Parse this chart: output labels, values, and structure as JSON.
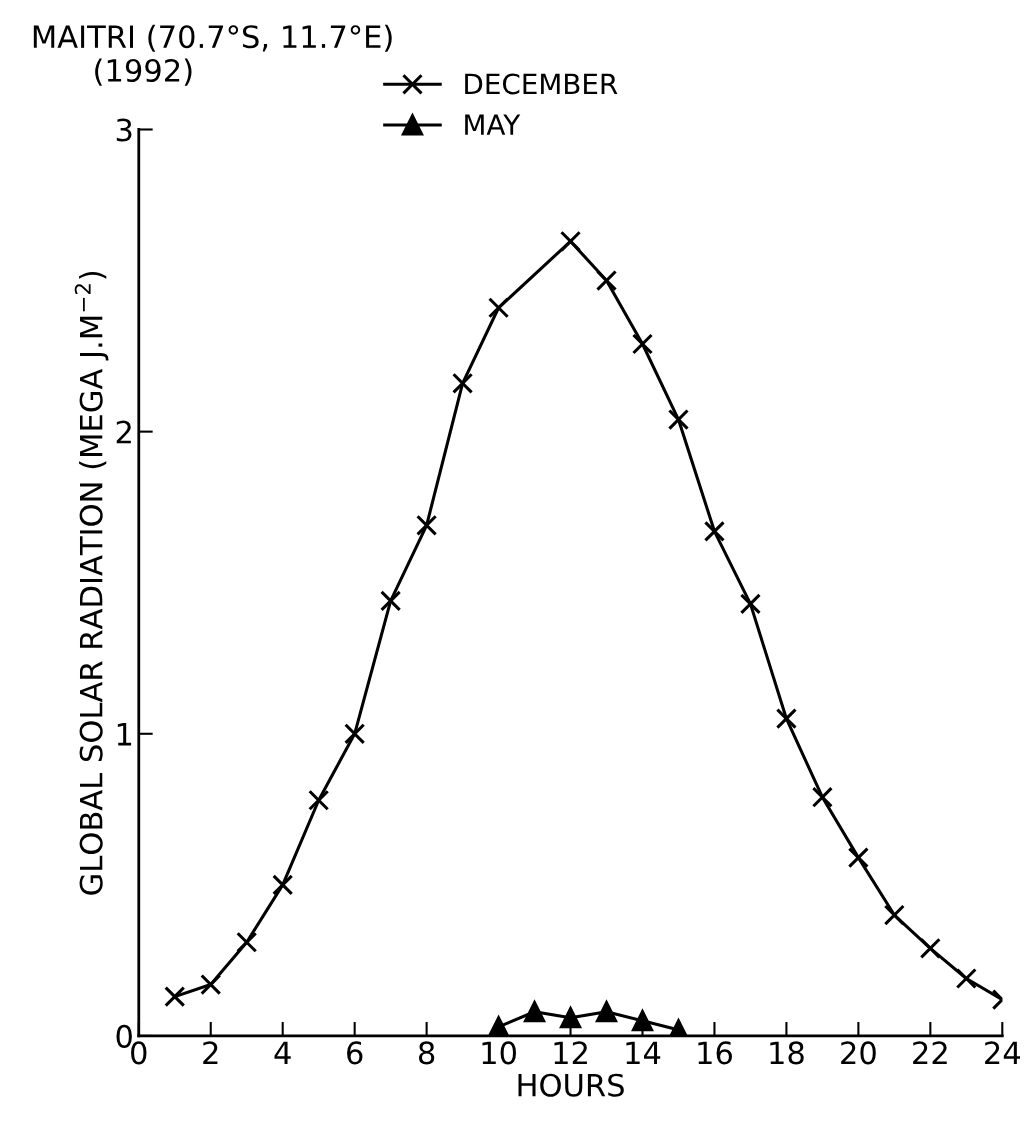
{
  "chart_data": {
    "type": "line",
    "title": "MAITRI (70.7°S, 11.7°E)",
    "subtitle": "(1992)",
    "xlabel": "HOURS",
    "ylabel": "GLOBAL SOLAR RADIATION (MEGA J.M$^{−2}$)",
    "xlim": [
      0,
      24
    ],
    "xticks": [
      0,
      2,
      4,
      6,
      8,
      10,
      12,
      14,
      16,
      18,
      20,
      22,
      24
    ],
    "ylim": [
      0,
      3
    ],
    "yticks": [
      0,
      1,
      2,
      3
    ],
    "grid": false,
    "legend": "top",
    "line_style": "solid",
    "series": [
      {
        "name": "DECEMBER",
        "color": "#000000",
        "marker": "cross",
        "x": [
          1,
          2,
          3,
          4,
          5,
          6,
          7,
          8,
          9,
          10,
          12,
          13,
          14,
          15,
          16,
          17,
          18,
          19,
          20,
          21,
          22,
          23,
          24
        ],
        "values": [
          0.13,
          0.17,
          0.31,
          0.5,
          0.78,
          1.0,
          1.44,
          1.69,
          2.16,
          2.41,
          2.63,
          2.5,
          2.29,
          2.04,
          1.67,
          1.43,
          1.05,
          0.79,
          0.59,
          0.4,
          0.29,
          0.19,
          0.12
        ]
      },
      {
        "name": "MAY",
        "color": "#000000",
        "marker": "triangle",
        "x": [
          10,
          11,
          12,
          13,
          14,
          15
        ],
        "values": [
          0.03,
          0.08,
          0.06,
          0.08,
          0.05,
          0.02
        ]
      }
    ]
  }
}
